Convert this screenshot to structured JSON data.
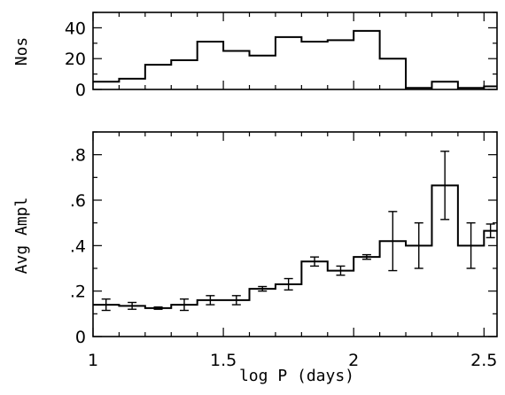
{
  "chart_data": [
    {
      "type": "histogram",
      "ylabel": "Nos",
      "xlim": [
        1.0,
        2.55
      ],
      "ylim": [
        0,
        50
      ],
      "yticks": [
        {
          "v": 0,
          "label": "0"
        },
        {
          "v": 20,
          "label": "20"
        },
        {
          "v": 40,
          "label": "40"
        }
      ],
      "bin_edges": [
        1.0,
        1.1,
        1.2,
        1.3,
        1.4,
        1.5,
        1.6,
        1.7,
        1.8,
        1.9,
        2.0,
        2.1,
        2.2,
        2.3,
        2.4,
        2.5,
        2.55
      ],
      "values": [
        5,
        7,
        16,
        19,
        31,
        25,
        22,
        34,
        31,
        32,
        38,
        20,
        1,
        5,
        1,
        2
      ]
    },
    {
      "type": "histogram",
      "xlabel": "log P (days)",
      "ylabel": "Avg Ampl",
      "xlim": [
        1.0,
        2.55
      ],
      "ylim": [
        0,
        0.9
      ],
      "xticks": [
        {
          "v": 1.0,
          "label": "1"
        },
        {
          "v": 1.5,
          "label": "1.5"
        },
        {
          "v": 2.0,
          "label": "2"
        },
        {
          "v": 2.5,
          "label": "2.5"
        }
      ],
      "yticks": [
        {
          "v": 0,
          "label": "0"
        },
        {
          "v": 0.2,
          "label": ".2"
        },
        {
          "v": 0.4,
          "label": ".4"
        },
        {
          "v": 0.6,
          "label": ".6"
        },
        {
          "v": 0.8,
          "label": ".8"
        }
      ],
      "bin_edges": [
        1.0,
        1.1,
        1.2,
        1.3,
        1.4,
        1.5,
        1.6,
        1.7,
        1.8,
        1.9,
        2.0,
        2.1,
        2.2,
        2.3,
        2.4,
        2.5,
        2.55
      ],
      "values": [
        0.14,
        0.135,
        0.125,
        0.14,
        0.16,
        0.16,
        0.21,
        0.23,
        0.33,
        0.29,
        0.35,
        0.42,
        0.4,
        0.665,
        0.4,
        0.465
      ],
      "errors": [
        0.025,
        0.015,
        0.005,
        0.025,
        0.02,
        0.02,
        0.01,
        0.025,
        0.02,
        0.02,
        0.01,
        0.13,
        0.1,
        0.15,
        0.1,
        0.03
      ]
    }
  ]
}
